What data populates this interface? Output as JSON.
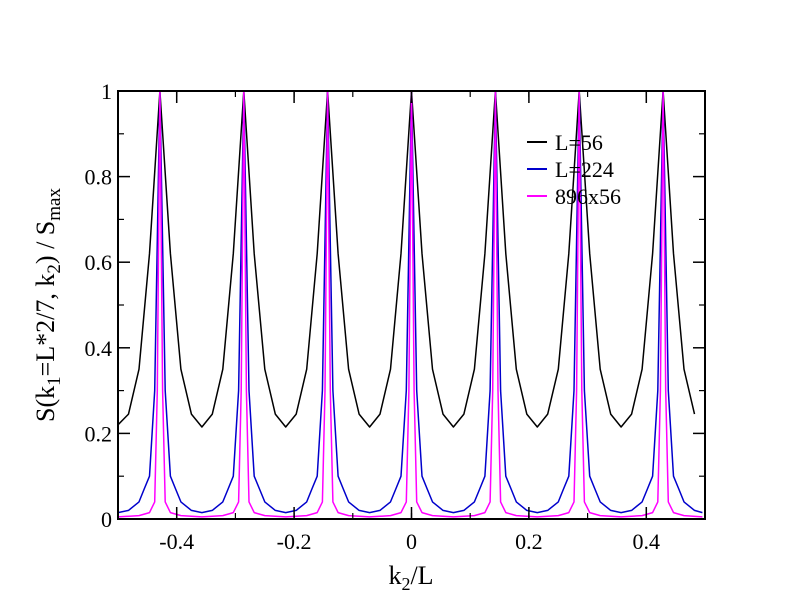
{
  "chart_data": {
    "type": "line",
    "title": "",
    "xlabel": "k2/L",
    "ylabel": "S(k1=L*2/7, k2) / Smax",
    "xlim": [
      -0.5,
      0.5
    ],
    "ylim": [
      0,
      1
    ],
    "xticks": [
      -0.4,
      -0.2,
      0,
      0.2,
      0.4
    ],
    "xtick_labels": [
      "-0.4",
      "-0.2",
      "0",
      "0.2",
      "0.4"
    ],
    "yticks": [
      0,
      0.2,
      0.4,
      0.6,
      0.8,
      1
    ],
    "ytick_labels": [
      "0",
      "0.2",
      "0.4",
      "0.6",
      "0.8",
      "1"
    ],
    "grid": false,
    "legend_position": "top-right",
    "peaks_at": [
      -0.4286,
      -0.2857,
      -0.1429,
      0,
      0.1429,
      0.2857,
      0.4286
    ],
    "series": [
      {
        "name": "L=56",
        "color": "#000000",
        "x": [
          -0.5,
          -0.4821,
          -0.4643,
          -0.4464,
          -0.4286,
          -0.4107,
          -0.3929,
          -0.375,
          -0.3571,
          -0.3393,
          -0.3214,
          -0.3036,
          -0.2857,
          -0.2679,
          -0.25,
          -0.2321,
          -0.2143,
          -0.1964,
          -0.1786,
          -0.1607,
          -0.1429,
          -0.125,
          -0.1071,
          -0.0893,
          -0.0714,
          -0.0536,
          -0.0357,
          -0.0179,
          0,
          0.0179,
          0.0357,
          0.0536,
          0.0714,
          0.0893,
          0.1071,
          0.125,
          0.1429,
          0.1607,
          0.1786,
          0.1964,
          0.2143,
          0.2321,
          0.25,
          0.2679,
          0.2857,
          0.3036,
          0.3214,
          0.3393,
          0.3571,
          0.375,
          0.3929,
          0.4107,
          0.4286,
          0.4464,
          0.4643,
          0.4821
        ],
        "y": [
          0.22,
          0.245,
          0.35,
          0.62,
          1.0,
          0.62,
          0.35,
          0.245,
          0.215,
          0.245,
          0.35,
          0.62,
          1.0,
          0.62,
          0.35,
          0.245,
          0.215,
          0.245,
          0.35,
          0.62,
          1.0,
          0.62,
          0.35,
          0.245,
          0.215,
          0.245,
          0.35,
          0.62,
          1.0,
          0.62,
          0.35,
          0.245,
          0.215,
          0.245,
          0.35,
          0.62,
          1.0,
          0.62,
          0.35,
          0.245,
          0.215,
          0.245,
          0.35,
          0.62,
          1.0,
          0.62,
          0.35,
          0.245,
          0.215,
          0.245,
          0.35,
          0.62,
          1.0,
          0.62,
          0.35,
          0.245
        ]
      },
      {
        "name": "L=224",
        "color": "#0000cc",
        "x": [
          -0.5,
          -0.4821,
          -0.4643,
          -0.4554,
          -0.4464,
          -0.4375,
          -0.4286,
          -0.4196,
          -0.4107,
          -0.4018,
          -0.3929,
          -0.375,
          -0.3571,
          -0.3393,
          -0.3214,
          -0.3125,
          -0.3036,
          -0.2946,
          -0.2857,
          -0.2768,
          -0.2679,
          -0.2589,
          -0.25,
          -0.2321,
          -0.2143,
          -0.1964,
          -0.1786,
          -0.1696,
          -0.1607,
          -0.1518,
          -0.1429,
          -0.1339,
          -0.125,
          -0.1161,
          -0.1071,
          -0.0893,
          -0.0714,
          -0.0536,
          -0.0357,
          -0.0268,
          -0.0179,
          -0.0089,
          0,
          0.0089,
          0.0179,
          0.0268,
          0.0357,
          0.0536,
          0.0714,
          0.0893,
          0.1071,
          0.1161,
          0.125,
          0.1339,
          0.1429,
          0.1518,
          0.1607,
          0.1696,
          0.1786,
          0.1964,
          0.2143,
          0.2321,
          0.25,
          0.2589,
          0.2679,
          0.2768,
          0.2857,
          0.2946,
          0.3036,
          0.3125,
          0.3214,
          0.3393,
          0.3571,
          0.375,
          0.3929,
          0.4018,
          0.4107,
          0.4196,
          0.4286,
          0.4375,
          0.4464,
          0.4554,
          0.4643,
          0.4821,
          0.4955
        ],
        "y": [
          0.015,
          0.02,
          0.04,
          0.07,
          0.1,
          0.3,
          1.0,
          0.3,
          0.1,
          0.07,
          0.04,
          0.02,
          0.015,
          0.02,
          0.04,
          0.07,
          0.1,
          0.3,
          1.0,
          0.3,
          0.1,
          0.07,
          0.04,
          0.02,
          0.015,
          0.02,
          0.04,
          0.07,
          0.1,
          0.3,
          1.0,
          0.3,
          0.1,
          0.07,
          0.04,
          0.02,
          0.015,
          0.02,
          0.04,
          0.07,
          0.1,
          0.3,
          1.0,
          0.3,
          0.1,
          0.07,
          0.04,
          0.02,
          0.015,
          0.02,
          0.04,
          0.07,
          0.1,
          0.3,
          1.0,
          0.3,
          0.1,
          0.07,
          0.04,
          0.02,
          0.015,
          0.02,
          0.04,
          0.07,
          0.1,
          0.3,
          1.0,
          0.3,
          0.1,
          0.07,
          0.04,
          0.02,
          0.015,
          0.02,
          0.04,
          0.07,
          0.1,
          0.3,
          1.0,
          0.3,
          0.1,
          0.07,
          0.04,
          0.02,
          0.015
        ]
      },
      {
        "name": "896x56",
        "color": "#ff00ff",
        "x": [
          -0.5,
          -0.4643,
          -0.4464,
          -0.4375,
          -0.433,
          -0.4286,
          -0.4241,
          -0.4196,
          -0.4107,
          -0.3929,
          -0.3571,
          -0.3214,
          -0.3036,
          -0.2946,
          -0.2902,
          -0.2857,
          -0.2813,
          -0.2768,
          -0.2679,
          -0.25,
          -0.2143,
          -0.1786,
          -0.1607,
          -0.1518,
          -0.1473,
          -0.1429,
          -0.1384,
          -0.1339,
          -0.125,
          -0.1071,
          -0.0714,
          -0.0357,
          -0.0179,
          -0.0089,
          -0.0045,
          0,
          0.0045,
          0.0089,
          0.0179,
          0.0357,
          0.0714,
          0.1071,
          0.125,
          0.1339,
          0.1384,
          0.1429,
          0.1473,
          0.1518,
          0.1607,
          0.1786,
          0.2143,
          0.25,
          0.2679,
          0.2768,
          0.2813,
          0.2857,
          0.2902,
          0.2946,
          0.3036,
          0.3214,
          0.3571,
          0.3929,
          0.4107,
          0.4196,
          0.4241,
          0.4286,
          0.433,
          0.4375,
          0.4464,
          0.4643,
          0.4955
        ],
        "y": [
          0.005,
          0.008,
          0.015,
          0.04,
          0.3,
          1.0,
          0.3,
          0.04,
          0.015,
          0.008,
          0.005,
          0.008,
          0.015,
          0.04,
          0.3,
          1.0,
          0.3,
          0.04,
          0.015,
          0.008,
          0.005,
          0.008,
          0.015,
          0.04,
          0.3,
          1.0,
          0.3,
          0.04,
          0.015,
          0.008,
          0.005,
          0.008,
          0.015,
          0.04,
          0.3,
          1.0,
          0.3,
          0.04,
          0.015,
          0.008,
          0.005,
          0.008,
          0.015,
          0.04,
          0.3,
          1.0,
          0.3,
          0.04,
          0.015,
          0.008,
          0.005,
          0.008,
          0.015,
          0.04,
          0.3,
          1.0,
          0.3,
          0.04,
          0.015,
          0.008,
          0.005,
          0.008,
          0.015,
          0.04,
          0.3,
          1.0,
          0.3,
          0.04,
          0.015,
          0.008,
          0.005
        ]
      }
    ]
  }
}
